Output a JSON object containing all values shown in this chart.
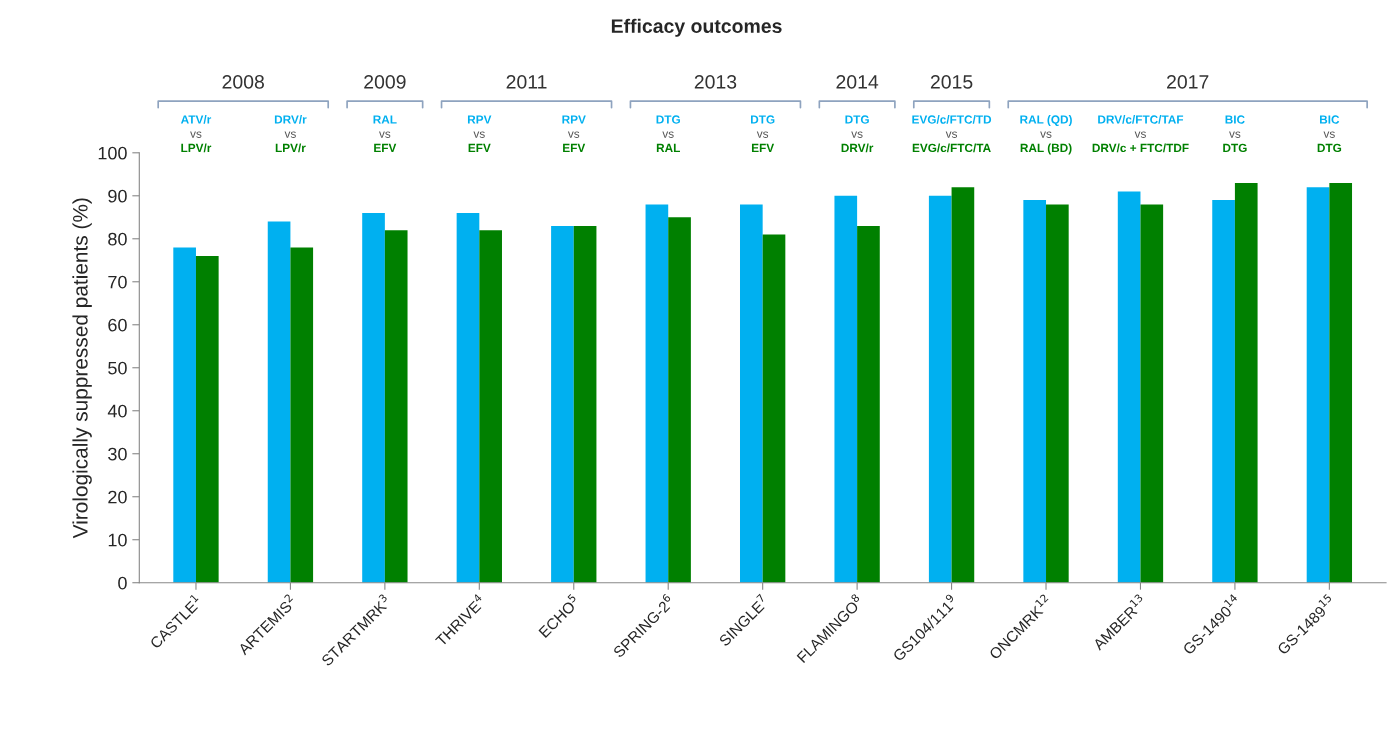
{
  "chart_data": {
    "type": "bar",
    "title": "Efficacy outcomes",
    "ylabel": "Virologically suppressed patients (%)",
    "categories": [
      "CASTLE$^{1}$",
      "ARTEMIS$^{2}$",
      "STARTMRK$^{3}$",
      "THRIVE$^{4}$",
      "ECHO$^{5}$",
      "SPRING-2$^{6}$",
      "SINGLE$^{7}$",
      "FLAMINGO$^{8}$",
      "GS104/111$^{9}$",
      "ONCMRK$^{12}$",
      "AMBER$^{13}$",
      "GS-1490$^{14}$",
      "GS-1489$^{15}$"
    ],
    "series": [
      {
        "color": "#00b0f0",
        "values": [
          78,
          84,
          86,
          86,
          83,
          88,
          88,
          90,
          90,
          89,
          91,
          89,
          92
        ]
      },
      {
        "color": "#008000",
        "values": [
          76,
          78,
          82,
          82,
          83,
          85,
          81,
          83,
          92,
          88,
          88,
          93,
          93
        ]
      }
    ],
    "ylim": [
      0,
      100
    ],
    "yticks": [
      0,
      10,
      20,
      30,
      40,
      50,
      60,
      70,
      80,
      90,
      100
    ],
    "grid": false,
    "legend": false,
    "annotations": [
      "2008",
      "ATV/r\nvs\nLPV/r",
      "DRV/r\nvs\nLPV/r",
      "2009",
      "RAL\nvs\nEFV",
      "2011",
      "RPV\nvs\nEFV",
      "RPV\nvs\nEFV",
      "2013",
      "DTG\nvs\nRAL",
      "DTG\nvs\nEFV",
      "2014",
      "DTG\nvs\nDRV/r",
      "2015",
      "EVG/c/FTC/TD\nvs\nEVG/c/FTC/TA",
      "2017",
      "RAL (QD)\nvs\nRAL (BD)",
      "DRV/c/FTC/TAF\nvs\nDRV/c + FTC/TDF",
      "BIC\nvs\nDTG",
      "BIC\nvs\nDTG"
    ]
  }
}
